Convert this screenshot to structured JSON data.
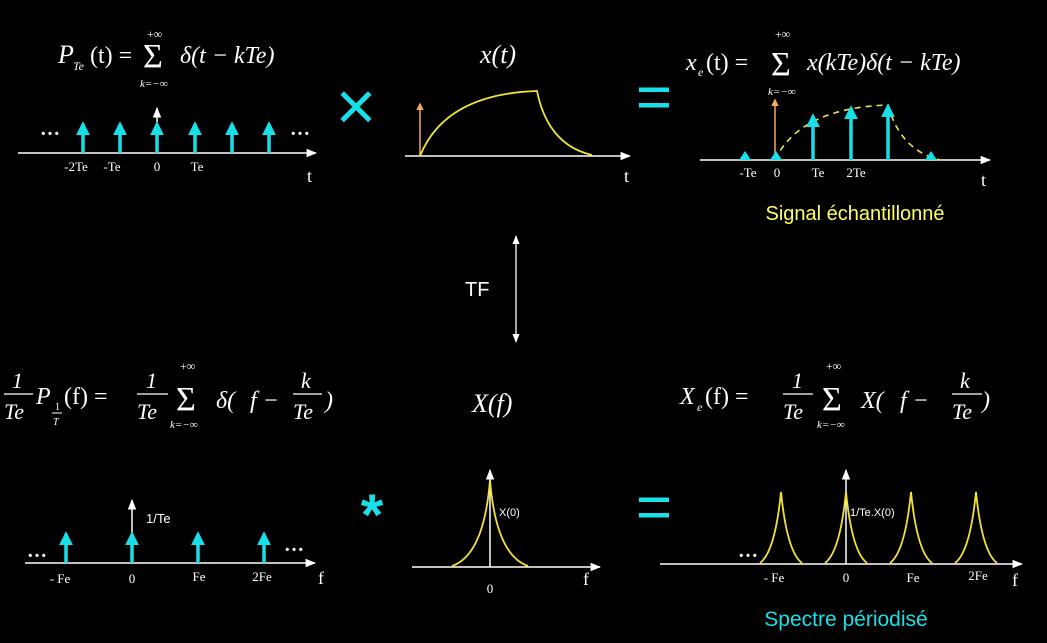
{
  "colors": {
    "background": "#000000",
    "cyan": "#19dfe8",
    "yellow": "#f2e23c",
    "caption_yellow": "#ffff66",
    "orange": "#f7a95c",
    "white": "#ffffff"
  },
  "operators": {
    "times": "×",
    "equals": "=",
    "convolve": "*"
  },
  "panels": {
    "comb_time": {
      "formula": {
        "lhs_P": "P",
        "lhs_sub": "Te",
        "lhs_arg": "(t) =",
        "sigma": "Σ",
        "sup": "+∞",
        "sub": "k=−∞",
        "body": "δ(t − kTe)"
      },
      "dots_left": "…",
      "dots_right": "…",
      "ticks": [
        "-2Te",
        "-Te",
        "0",
        "Te"
      ],
      "axis_label": "t"
    },
    "signal_time": {
      "formula": "x(t)",
      "axis_label": "t"
    },
    "sampled_time": {
      "formula": {
        "lhs": "x",
        "lhs_sub": "e",
        "lhs_arg": "(t) =",
        "sigma": "Σ",
        "sup": "+∞",
        "sub": "k=−∞",
        "body": "x(kTe)δ(t − kTe)"
      },
      "ticks": [
        "-Te",
        "0",
        "Te",
        "2Te"
      ],
      "axis_label": "t",
      "caption": "Signal échantillonné"
    },
    "transform": {
      "label": "TF"
    },
    "comb_freq": {
      "formula": {
        "frac_num": "1",
        "frac_den": "Te",
        "P": "P",
        "P_sub_num": "1",
        "P_sub_den": "T",
        "arg": "(f) =",
        "frac2_num": "1",
        "frac2_den": "Te",
        "sigma": "Σ",
        "sup": "+∞",
        "sub": "k=−∞",
        "body_start": "δ(",
        "body_f": "f −",
        "body_k": "k",
        "body_Te": "Te",
        "body_end": ")"
      },
      "amplitude_label": "1/Te",
      "dots_left": "…",
      "dots_right": "…",
      "ticks": [
        "- Fe",
        "0",
        "Fe",
        "2Fe"
      ],
      "axis_label": "f"
    },
    "spectrum": {
      "formula": "X(f)",
      "peak_label": "X(0)",
      "ticks": [
        "0"
      ],
      "axis_label": "f"
    },
    "periodic_spectrum": {
      "formula": {
        "lhs": "X",
        "lhs_sub": "e",
        "lhs_arg": "(f) =",
        "frac_num": "1",
        "frac_den": "Te",
        "sigma": "Σ",
        "sup": "+∞",
        "sub": "k=−∞",
        "body_start": "X(",
        "body_f": "f −",
        "body_k": "k",
        "body_Te": "Te",
        "body_end": ")"
      },
      "peak_label": "1/Te.X(0)",
      "dots_left": "…",
      "ticks": [
        "- Fe",
        "0",
        "Fe",
        "2Fe"
      ],
      "axis_label": "f",
      "caption": "Spectre périodisé"
    }
  }
}
